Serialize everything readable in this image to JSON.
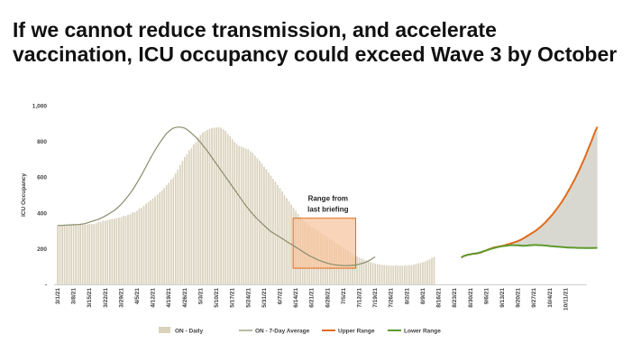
{
  "slide": {
    "title_line1": "If we cannot reduce transmission, and accelerate",
    "title_line2": "vaccination, ICU occupancy could exceed Wave 3 by October",
    "footer_text": ""
  },
  "chart_data": {
    "type": "bar",
    "title": "",
    "ylabel": "ICU Occupancy",
    "xlabel": "",
    "ylim": [
      0,
      1000
    ],
    "yticks": [
      0,
      200,
      400,
      600,
      800,
      1000
    ],
    "ytick_labels": [
      "-",
      "200",
      "400",
      "600",
      "800",
      "1,000"
    ],
    "grid": false,
    "legend_position": "bottom",
    "x_tick_labels": [
      "3/1/21",
      "3/8/21",
      "3/15/21",
      "3/22/21",
      "3/29/21",
      "4/5/21",
      "4/12/21",
      "4/19/21",
      "4/26/21",
      "5/3/21",
      "5/10/21",
      "5/17/21",
      "5/24/21",
      "5/31/21",
      "6/7/21",
      "6/14/21",
      "6/21/21",
      "6/28/21",
      "7/5/21",
      "7/12/21",
      "7/19/21",
      "7/26/21",
      "8/2/21",
      "8/9/21",
      "8/16/21",
      "8/23/21",
      "8/30/21",
      "9/6/21",
      "9/13/21",
      "9/20/21",
      "9/27/21",
      "10/4/21",
      "10/11/21"
    ],
    "series": [
      {
        "name": "ON - Daily",
        "kind": "bar",
        "color": "#d9d2bd",
        "start_date": "3/1/21",
        "values": [
          330,
          330,
          329,
          329,
          328,
          330,
          332,
          331,
          330,
          333,
          336,
          333,
          334,
          336,
          338,
          337,
          338,
          342,
          350,
          348,
          356,
          355,
          360,
          362,
          366,
          366,
          370,
          374,
          376,
          384,
          382,
          390,
          392,
          402,
          404,
          412,
          426,
          428,
          440,
          452,
          460,
          470,
          480,
          492,
          502,
          514,
          526,
          540,
          556,
          568,
          586,
          598,
          620,
          642,
          668,
          690,
          712,
          728,
          750,
          762,
          782,
          795,
          820,
          836,
          850,
          856,
          864,
          870,
          875,
          876,
          878,
          880,
          876,
          868,
          858,
          842,
          828,
          812,
          796,
          784,
          774,
          770,
          766,
          760,
          756,
          744,
          736,
          720,
          706,
          692,
          676,
          658,
          644,
          626,
          608,
          590,
          574,
          556,
          538,
          520,
          500,
          482,
          464,
          446,
          428,
          412,
          394,
          376,
          362,
          352,
          342,
          330,
          320,
          314,
          306,
          298,
          288,
          280,
          272,
          264,
          254,
          246,
          238,
          230,
          220,
          212,
          204,
          196,
          188,
          178,
          170,
          162,
          156,
          150,
          144,
          140,
          134,
          128,
          124,
          120,
          116,
          114,
          112,
          110,
          108,
          106,
          106,
          105,
          104,
          106,
          105,
          104,
          105,
          106,
          106,
          108,
          108,
          110,
          114,
          118,
          120,
          124,
          128,
          134,
          140,
          148,
          154
        ]
      },
      {
        "name": "ON - 7-Day Average",
        "kind": "line",
        "color": "#8a8d6c",
        "start_date": "3/1/21",
        "values": [
          330,
          330,
          330,
          331,
          332,
          333,
          333,
          334,
          334,
          335,
          336,
          338,
          340,
          344,
          348,
          352,
          356,
          360,
          364,
          370,
          376,
          383,
          390,
          398,
          406,
          414,
          424,
          436,
          448,
          462,
          478,
          494,
          510,
          528,
          548,
          568,
          590,
          612,
          636,
          660,
          684,
          708,
          730,
          752,
          772,
          792,
          810,
          828,
          844,
          856,
          866,
          874,
          878,
          880,
          880,
          878,
          874,
          866,
          856,
          846,
          834,
          822,
          808,
          794,
          778,
          762,
          746,
          728,
          710,
          692,
          674,
          656,
          638,
          620,
          602,
          584,
          566,
          548,
          530,
          512,
          494,
          476,
          458,
          440,
          424,
          408,
          394,
          380,
          366,
          354,
          342,
          330,
          318,
          306,
          296,
          288,
          280,
          272,
          264,
          256,
          248,
          240,
          232,
          224,
          216,
          208,
          200,
          192,
          184,
          176,
          168,
          160,
          154,
          148,
          142,
          136,
          131,
          126,
          122,
          118,
          115,
          112,
          110,
          108,
          107,
          106,
          105,
          105,
          105,
          106,
          106,
          108,
          110,
          113,
          116,
          120,
          125,
          131,
          138,
          146,
          154
        ]
      },
      {
        "name": "Upper Range",
        "kind": "line",
        "color": "#e06c1c",
        "start_date": "8/26/21",
        "values": [
          150,
          158,
          162,
          166,
          168,
          171,
          172,
          173,
          176,
          180,
          186,
          190,
          196,
          200,
          205,
          208,
          210,
          213,
          215,
          218,
          222,
          226,
          230,
          234,
          238,
          243,
          248,
          255,
          262,
          270,
          278,
          286,
          294,
          302,
          312,
          322,
          334,
          346,
          360,
          374,
          388,
          404,
          420,
          438,
          456,
          476,
          496,
          518,
          540,
          564,
          588,
          614,
          640,
          668,
          696,
          726,
          758,
          790,
          822,
          855,
          882
        ]
      },
      {
        "name": "Lower Range",
        "kind": "line",
        "color": "#5e9a2e",
        "start_date": "8/26/21",
        "values": [
          150,
          158,
          162,
          166,
          168,
          171,
          172,
          174,
          178,
          182,
          186,
          190,
          194,
          198,
          202,
          205,
          208,
          211,
          213,
          215,
          216,
          218,
          219,
          219,
          218,
          218,
          217,
          216,
          216,
          217,
          218,
          219,
          220,
          220,
          219,
          219,
          218,
          217,
          216,
          214,
          213,
          212,
          211,
          210,
          209,
          208,
          207,
          206,
          206,
          205,
          205,
          204,
          204,
          204,
          203,
          203,
          203,
          203,
          203,
          204,
          204
        ]
      }
    ],
    "annotation": {
      "lines": [
        "Range from",
        "last briefing"
      ],
      "from_date": "6/14/21",
      "to_date": "7/12/21",
      "y_range": [
        90,
        370
      ],
      "fill_color": "#f7c6a0",
      "border_color": "#e06c1c"
    }
  }
}
